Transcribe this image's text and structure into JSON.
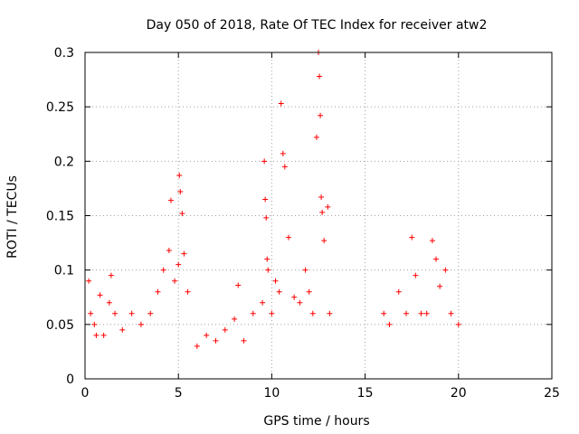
{
  "chart_data": {
    "type": "scatter",
    "title": "Day 050 of 2018, Rate Of TEC Index for receiver atw2",
    "xlabel": "GPS time / hours",
    "ylabel": "ROTI / TECUs",
    "xlim": [
      0,
      25
    ],
    "ylim": [
      0,
      0.3
    ],
    "xticks": [
      0,
      5,
      10,
      15,
      20,
      25
    ],
    "xtick_labels": [
      "0",
      "5",
      "10",
      "15",
      "20",
      "25"
    ],
    "yticks": [
      0,
      0.05,
      0.1,
      0.15,
      0.2,
      0.25,
      0.3
    ],
    "ytick_labels": [
      "0",
      "0.05",
      "0.1",
      "0.15",
      "0.2",
      "0.25",
      "0.3"
    ],
    "grid": true,
    "marker": "+",
    "marker_color": "#ff0000",
    "series": [
      {
        "name": "ROTI",
        "x": [
          0.2,
          0.3,
          0.5,
          0.6,
          0.8,
          1.0,
          1.3,
          1.4,
          1.6,
          2.0,
          2.5,
          3.0,
          3.5,
          3.9,
          4.2,
          4.5,
          4.6,
          4.8,
          5.0,
          5.05,
          5.1,
          5.2,
          5.3,
          5.5,
          6.0,
          6.5,
          7.0,
          7.5,
          8.0,
          8.2,
          8.5,
          9.0,
          9.5,
          9.6,
          9.65,
          9.7,
          9.75,
          9.8,
          10.0,
          10.2,
          10.4,
          10.5,
          10.6,
          10.7,
          10.9,
          11.2,
          11.5,
          11.8,
          12.0,
          12.2,
          12.4,
          12.5,
          12.55,
          12.6,
          12.65,
          12.7,
          12.8,
          13.0,
          13.1,
          16.0,
          16.3,
          16.8,
          17.2,
          17.5,
          17.7,
          18.0,
          18.3,
          18.6,
          18.8,
          19.0,
          19.3,
          19.6,
          20.0
        ],
        "y": [
          0.09,
          0.06,
          0.05,
          0.04,
          0.077,
          0.04,
          0.07,
          0.095,
          0.06,
          0.045,
          0.06,
          0.05,
          0.06,
          0.08,
          0.1,
          0.118,
          0.164,
          0.09,
          0.105,
          0.187,
          0.172,
          0.152,
          0.115,
          0.08,
          0.03,
          0.04,
          0.035,
          0.045,
          0.055,
          0.086,
          0.035,
          0.06,
          0.07,
          0.2,
          0.165,
          0.148,
          0.11,
          0.1,
          0.06,
          0.09,
          0.08,
          0.253,
          0.207,
          0.195,
          0.13,
          0.075,
          0.07,
          0.1,
          0.08,
          0.06,
          0.222,
          0.3,
          0.278,
          0.242,
          0.167,
          0.153,
          0.127,
          0.158,
          0.06,
          0.06,
          0.05,
          0.08,
          0.06,
          0.13,
          0.095,
          0.06,
          0.06,
          0.127,
          0.11,
          0.085,
          0.1,
          0.06,
          0.05
        ]
      }
    ]
  }
}
